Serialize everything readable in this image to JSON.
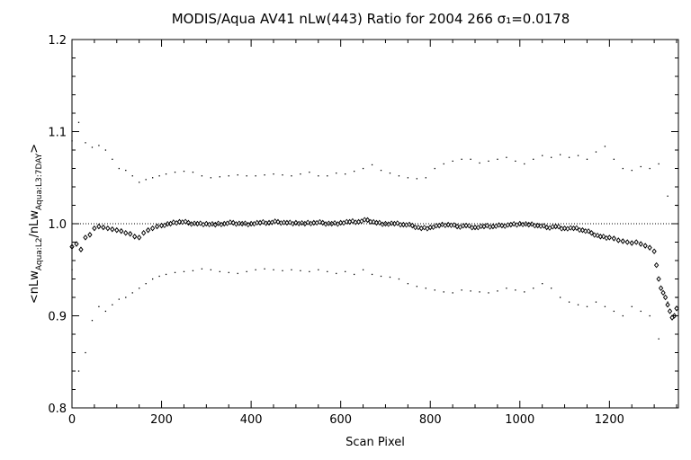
{
  "chart_data": {
    "type": "scatter",
    "title": "MODIS/Aqua AV41 nLw(443) Ratio for 2004 266 σ₁=0.0178",
    "xlabel": "Scan Pixel",
    "ylabel": "<nLw_Aqua:L2/nLw_Aqua:L3:7DAY>",
    "ylabel_parts": {
      "open": "<nLw",
      "sub1": "Aqua:L2",
      "mid": "/nLw",
      "sub2": "Aqua:L3:7DAY",
      "close": ">"
    },
    "xlim": [
      0,
      1354
    ],
    "ylim": [
      0.8,
      1.2
    ],
    "xticks": [
      "0",
      "200",
      "400",
      "600",
      "800",
      "1000",
      "1200"
    ],
    "yticks": [
      "0.8",
      "0.9",
      "1.0",
      "1.1",
      "1.2"
    ],
    "reference_line": 1.0,
    "grid": false,
    "series": [
      {
        "role": "median",
        "marker": "diamond",
        "x": [
          0,
          10,
          20,
          30,
          40,
          50,
          60,
          70,
          80,
          90,
          100,
          110,
          120,
          130,
          140,
          150,
          160,
          170,
          180,
          190,
          200,
          220,
          240,
          260,
          280,
          300,
          320,
          340,
          360,
          380,
          400,
          420,
          440,
          460,
          480,
          500,
          520,
          540,
          560,
          580,
          600,
          620,
          640,
          660,
          680,
          700,
          720,
          740,
          760,
          780,
          800,
          820,
          840,
          860,
          880,
          900,
          920,
          940,
          960,
          980,
          1000,
          1020,
          1040,
          1060,
          1080,
          1100,
          1120,
          1140,
          1160,
          1180,
          1200,
          1210,
          1220,
          1230,
          1240,
          1250,
          1260,
          1270,
          1280,
          1290,
          1300,
          1305,
          1310,
          1315,
          1320,
          1325,
          1330,
          1335,
          1340,
          1345,
          1350
        ],
        "y": [
          0.975,
          0.978,
          0.972,
          0.985,
          0.988,
          0.995,
          0.997,
          0.996,
          0.995,
          0.994,
          0.993,
          0.992,
          0.99,
          0.989,
          0.986,
          0.985,
          0.99,
          0.993,
          0.995,
          0.997,
          0.998,
          1.0,
          1.002,
          1.001,
          1.0,
          1.0,
          0.999,
          1.0,
          1.001,
          1.0,
          1.0,
          1.001,
          1.001,
          1.002,
          1.001,
          1.001,
          1.0,
          1.001,
          1.001,
          1.0,
          1.001,
          1.002,
          1.002,
          1.004,
          1.001,
          1.0,
          1.0,
          0.999,
          0.998,
          0.995,
          0.996,
          0.998,
          0.999,
          0.997,
          0.998,
          0.996,
          0.997,
          0.997,
          0.998,
          0.999,
          1.0,
          0.999,
          0.998,
          0.996,
          0.997,
          0.995,
          0.995,
          0.993,
          0.99,
          0.986,
          0.985,
          0.984,
          0.982,
          0.981,
          0.98,
          0.979,
          0.98,
          0.978,
          0.976,
          0.974,
          0.97,
          0.955,
          0.94,
          0.93,
          0.925,
          0.92,
          0.912,
          0.905,
          0.898,
          0.9,
          0.908
        ]
      },
      {
        "role": "upper",
        "marker": "dot",
        "x": [
          0,
          15,
          30,
          45,
          60,
          75,
          90,
          105,
          120,
          135,
          150,
          165,
          180,
          195,
          210,
          230,
          250,
          270,
          290,
          310,
          330,
          350,
          370,
          390,
          410,
          430,
          450,
          470,
          490,
          510,
          530,
          550,
          570,
          590,
          610,
          630,
          650,
          670,
          690,
          710,
          730,
          750,
          770,
          790,
          810,
          830,
          850,
          870,
          890,
          910,
          930,
          950,
          970,
          990,
          1010,
          1030,
          1050,
          1070,
          1090,
          1110,
          1130,
          1150,
          1170,
          1190,
          1210,
          1230,
          1250,
          1270,
          1290,
          1310,
          1330,
          1350
        ],
        "y": [
          1.09,
          1.11,
          1.088,
          1.083,
          1.085,
          1.08,
          1.07,
          1.06,
          1.058,
          1.052,
          1.045,
          1.048,
          1.05,
          1.052,
          1.054,
          1.056,
          1.057,
          1.056,
          1.052,
          1.05,
          1.051,
          1.052,
          1.053,
          1.052,
          1.052,
          1.053,
          1.054,
          1.053,
          1.052,
          1.054,
          1.056,
          1.052,
          1.052,
          1.055,
          1.054,
          1.057,
          1.06,
          1.064,
          1.058,
          1.055,
          1.052,
          1.05,
          1.049,
          1.05,
          1.06,
          1.065,
          1.068,
          1.07,
          1.07,
          1.066,
          1.068,
          1.07,
          1.072,
          1.068,
          1.065,
          1.07,
          1.074,
          1.072,
          1.075,
          1.072,
          1.074,
          1.07,
          1.078,
          1.084,
          1.07,
          1.06,
          1.058,
          1.062,
          1.06,
          1.065,
          1.03,
          1.02
        ]
      },
      {
        "role": "lower",
        "marker": "dot",
        "x": [
          0,
          15,
          30,
          45,
          60,
          75,
          90,
          105,
          120,
          135,
          150,
          165,
          180,
          195,
          210,
          230,
          250,
          270,
          290,
          310,
          330,
          350,
          370,
          390,
          410,
          430,
          450,
          470,
          490,
          510,
          530,
          550,
          570,
          590,
          610,
          630,
          650,
          670,
          690,
          710,
          730,
          750,
          770,
          790,
          810,
          830,
          850,
          870,
          890,
          910,
          930,
          950,
          970,
          990,
          1010,
          1030,
          1050,
          1070,
          1090,
          1110,
          1130,
          1150,
          1170,
          1190,
          1210,
          1230,
          1250,
          1270,
          1290,
          1310,
          1330,
          1350
        ],
        "y": [
          0.95,
          0.84,
          0.86,
          0.895,
          0.91,
          0.905,
          0.912,
          0.918,
          0.92,
          0.925,
          0.93,
          0.935,
          0.94,
          0.943,
          0.945,
          0.947,
          0.948,
          0.949,
          0.951,
          0.95,
          0.948,
          0.947,
          0.946,
          0.948,
          0.95,
          0.951,
          0.95,
          0.949,
          0.95,
          0.949,
          0.948,
          0.95,
          0.948,
          0.946,
          0.948,
          0.945,
          0.95,
          0.945,
          0.943,
          0.942,
          0.94,
          0.935,
          0.932,
          0.93,
          0.928,
          0.926,
          0.925,
          0.928,
          0.927,
          0.926,
          0.925,
          0.927,
          0.93,
          0.928,
          0.926,
          0.93,
          0.935,
          0.93,
          0.92,
          0.915,
          0.912,
          0.91,
          0.915,
          0.91,
          0.905,
          0.9,
          0.91,
          0.905,
          0.9,
          0.875,
          0.915,
          0.92
        ]
      }
    ]
  }
}
